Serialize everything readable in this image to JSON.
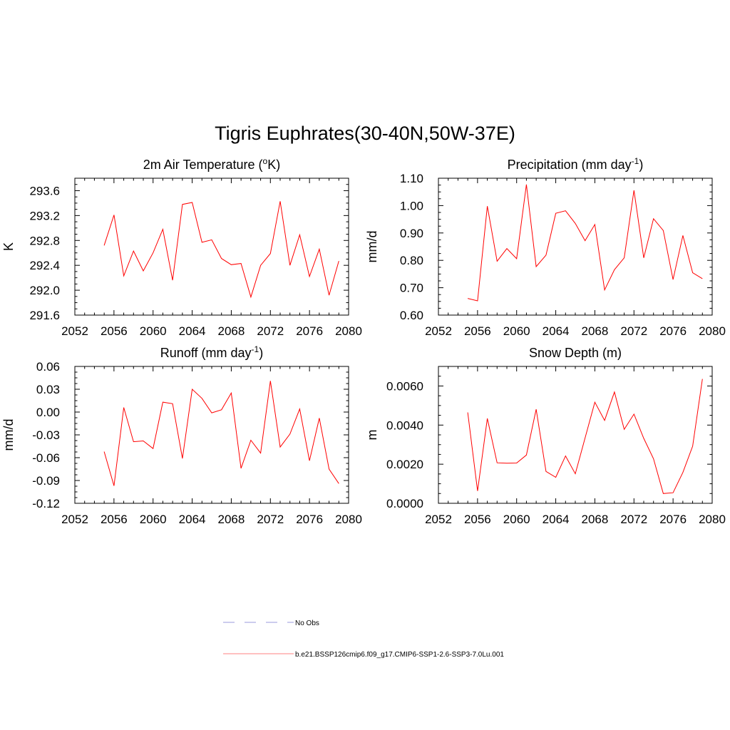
{
  "figure": {
    "title": "Tigris Euphrates(30-40N,50W-37E)"
  },
  "legend": {
    "entries": [
      {
        "label": "No Obs",
        "color": "#9999dd",
        "style": "dashed"
      },
      {
        "label": "b.e21.BSSP126cmip6.f09_g17.CMIP6-SSP1-2.6-SSP3-7.0Lu.001",
        "color": "#ff8080",
        "style": "solid"
      }
    ]
  },
  "chart_data": [
    {
      "type": "line",
      "title_main": "2m Air Temperature (",
      "title_sup": "o",
      "title_end": "K)",
      "ylabel": "K",
      "xlim": [
        2052,
        2080
      ],
      "xticks": [
        2052,
        2056,
        2060,
        2064,
        2068,
        2072,
        2076,
        2080
      ],
      "ylim": [
        291.6,
        293.8
      ],
      "yticks": [
        291.6,
        292.0,
        292.4,
        292.8,
        293.2,
        293.6
      ],
      "yticklabels": [
        "291.6",
        "292.0",
        "292.4",
        "292.8",
        "293.2",
        "293.6"
      ],
      "series": [
        {
          "color": "#ff0000",
          "x": [
            2055,
            2056,
            2057,
            2058,
            2059,
            2060,
            2061,
            2062,
            2063,
            2064,
            2065,
            2066,
            2067,
            2068,
            2069,
            2070,
            2071,
            2072,
            2073,
            2074,
            2075,
            2076,
            2077,
            2078,
            2079
          ],
          "y": [
            292.72,
            293.21,
            292.23,
            292.63,
            292.31,
            292.6,
            292.98,
            292.16,
            293.38,
            293.41,
            292.77,
            292.81,
            292.51,
            292.41,
            292.43,
            291.89,
            292.4,
            292.59,
            293.43,
            292.4,
            292.89,
            292.22,
            292.66,
            291.92,
            292.47
          ]
        }
      ]
    },
    {
      "type": "line",
      "title_main": "Precipitation (mm day",
      "title_sup": "-1",
      "title_end": ")",
      "ylabel": "mm/d",
      "xlim": [
        2052,
        2080
      ],
      "xticks": [
        2052,
        2056,
        2060,
        2064,
        2068,
        2072,
        2076,
        2080
      ],
      "ylim": [
        0.6,
        1.1
      ],
      "yticks": [
        0.6,
        0.7,
        0.8,
        0.9,
        1.0,
        1.1
      ],
      "yticklabels": [
        "0.60",
        "0.70",
        "0.80",
        "0.90",
        "1.00",
        "1.10"
      ],
      "series": [
        {
          "color": "#ff0000",
          "x": [
            2055,
            2056,
            2057,
            2058,
            2059,
            2060,
            2061,
            2062,
            2063,
            2064,
            2065,
            2066,
            2067,
            2068,
            2069,
            2070,
            2071,
            2072,
            2073,
            2074,
            2075,
            2076,
            2077,
            2078,
            2079
          ],
          "y": [
            0.661,
            0.652,
            0.998,
            0.797,
            0.843,
            0.806,
            1.077,
            0.777,
            0.819,
            0.972,
            0.981,
            0.935,
            0.872,
            0.931,
            0.692,
            0.766,
            0.809,
            1.056,
            0.809,
            0.952,
            0.909,
            0.73,
            0.891,
            0.755,
            0.733
          ]
        }
      ]
    },
    {
      "type": "line",
      "title_main": "Runoff (mm day",
      "title_sup": "-1",
      "title_end": ")",
      "ylabel": "mm/d",
      "xlim": [
        2052,
        2080
      ],
      "xticks": [
        2052,
        2056,
        2060,
        2064,
        2068,
        2072,
        2076,
        2080
      ],
      "ylim": [
        -0.12,
        0.06
      ],
      "yticks": [
        -0.12,
        -0.09,
        -0.06,
        -0.03,
        0.0,
        0.03,
        0.06
      ],
      "yticklabels": [
        "-0.12",
        "-0.09",
        "-0.06",
        "-0.03",
        "0.00",
        "0.03",
        "0.06"
      ],
      "series": [
        {
          "color": "#ff0000",
          "x": [
            2055,
            2056,
            2057,
            2058,
            2059,
            2060,
            2061,
            2062,
            2063,
            2064,
            2065,
            2066,
            2067,
            2068,
            2069,
            2070,
            2071,
            2072,
            2073,
            2074,
            2075,
            2076,
            2077,
            2078,
            2079
          ],
          "y": [
            -0.052,
            -0.097,
            0.006,
            -0.039,
            -0.038,
            -0.048,
            0.013,
            0.011,
            -0.061,
            0.03,
            0.018,
            -0.001,
            0.003,
            0.025,
            -0.074,
            -0.037,
            -0.054,
            0.041,
            -0.046,
            -0.029,
            0.004,
            -0.064,
            -0.008,
            -0.075,
            -0.094
          ]
        }
      ]
    },
    {
      "type": "line",
      "title_main": "Snow Depth (m)",
      "title_sup": "",
      "title_end": "",
      "ylabel": "m",
      "xlim": [
        2052,
        2080
      ],
      "xticks": [
        2052,
        2056,
        2060,
        2064,
        2068,
        2072,
        2076,
        2080
      ],
      "ylim": [
        0.0,
        0.007
      ],
      "yticks": [
        0.0,
        0.002,
        0.004,
        0.006
      ],
      "yticklabels": [
        "0.0000",
        "0.0020",
        "0.0040",
        "0.0060"
      ],
      "series": [
        {
          "color": "#ff0000",
          "x": [
            2055,
            2056,
            2057,
            2058,
            2059,
            2060,
            2061,
            2062,
            2063,
            2064,
            2065,
            2066,
            2067,
            2068,
            2069,
            2070,
            2071,
            2072,
            2073,
            2074,
            2075,
            2076,
            2077,
            2078,
            2079
          ],
          "y": [
            0.00465,
            0.00063,
            0.00434,
            0.00207,
            0.00205,
            0.00206,
            0.00247,
            0.00481,
            0.00163,
            0.00133,
            0.00242,
            0.00151,
            0.00334,
            0.00517,
            0.00424,
            0.00569,
            0.00378,
            0.00456,
            0.00332,
            0.00228,
            0.0005,
            0.00054,
            0.00158,
            0.00292,
            0.00636
          ]
        }
      ]
    }
  ]
}
